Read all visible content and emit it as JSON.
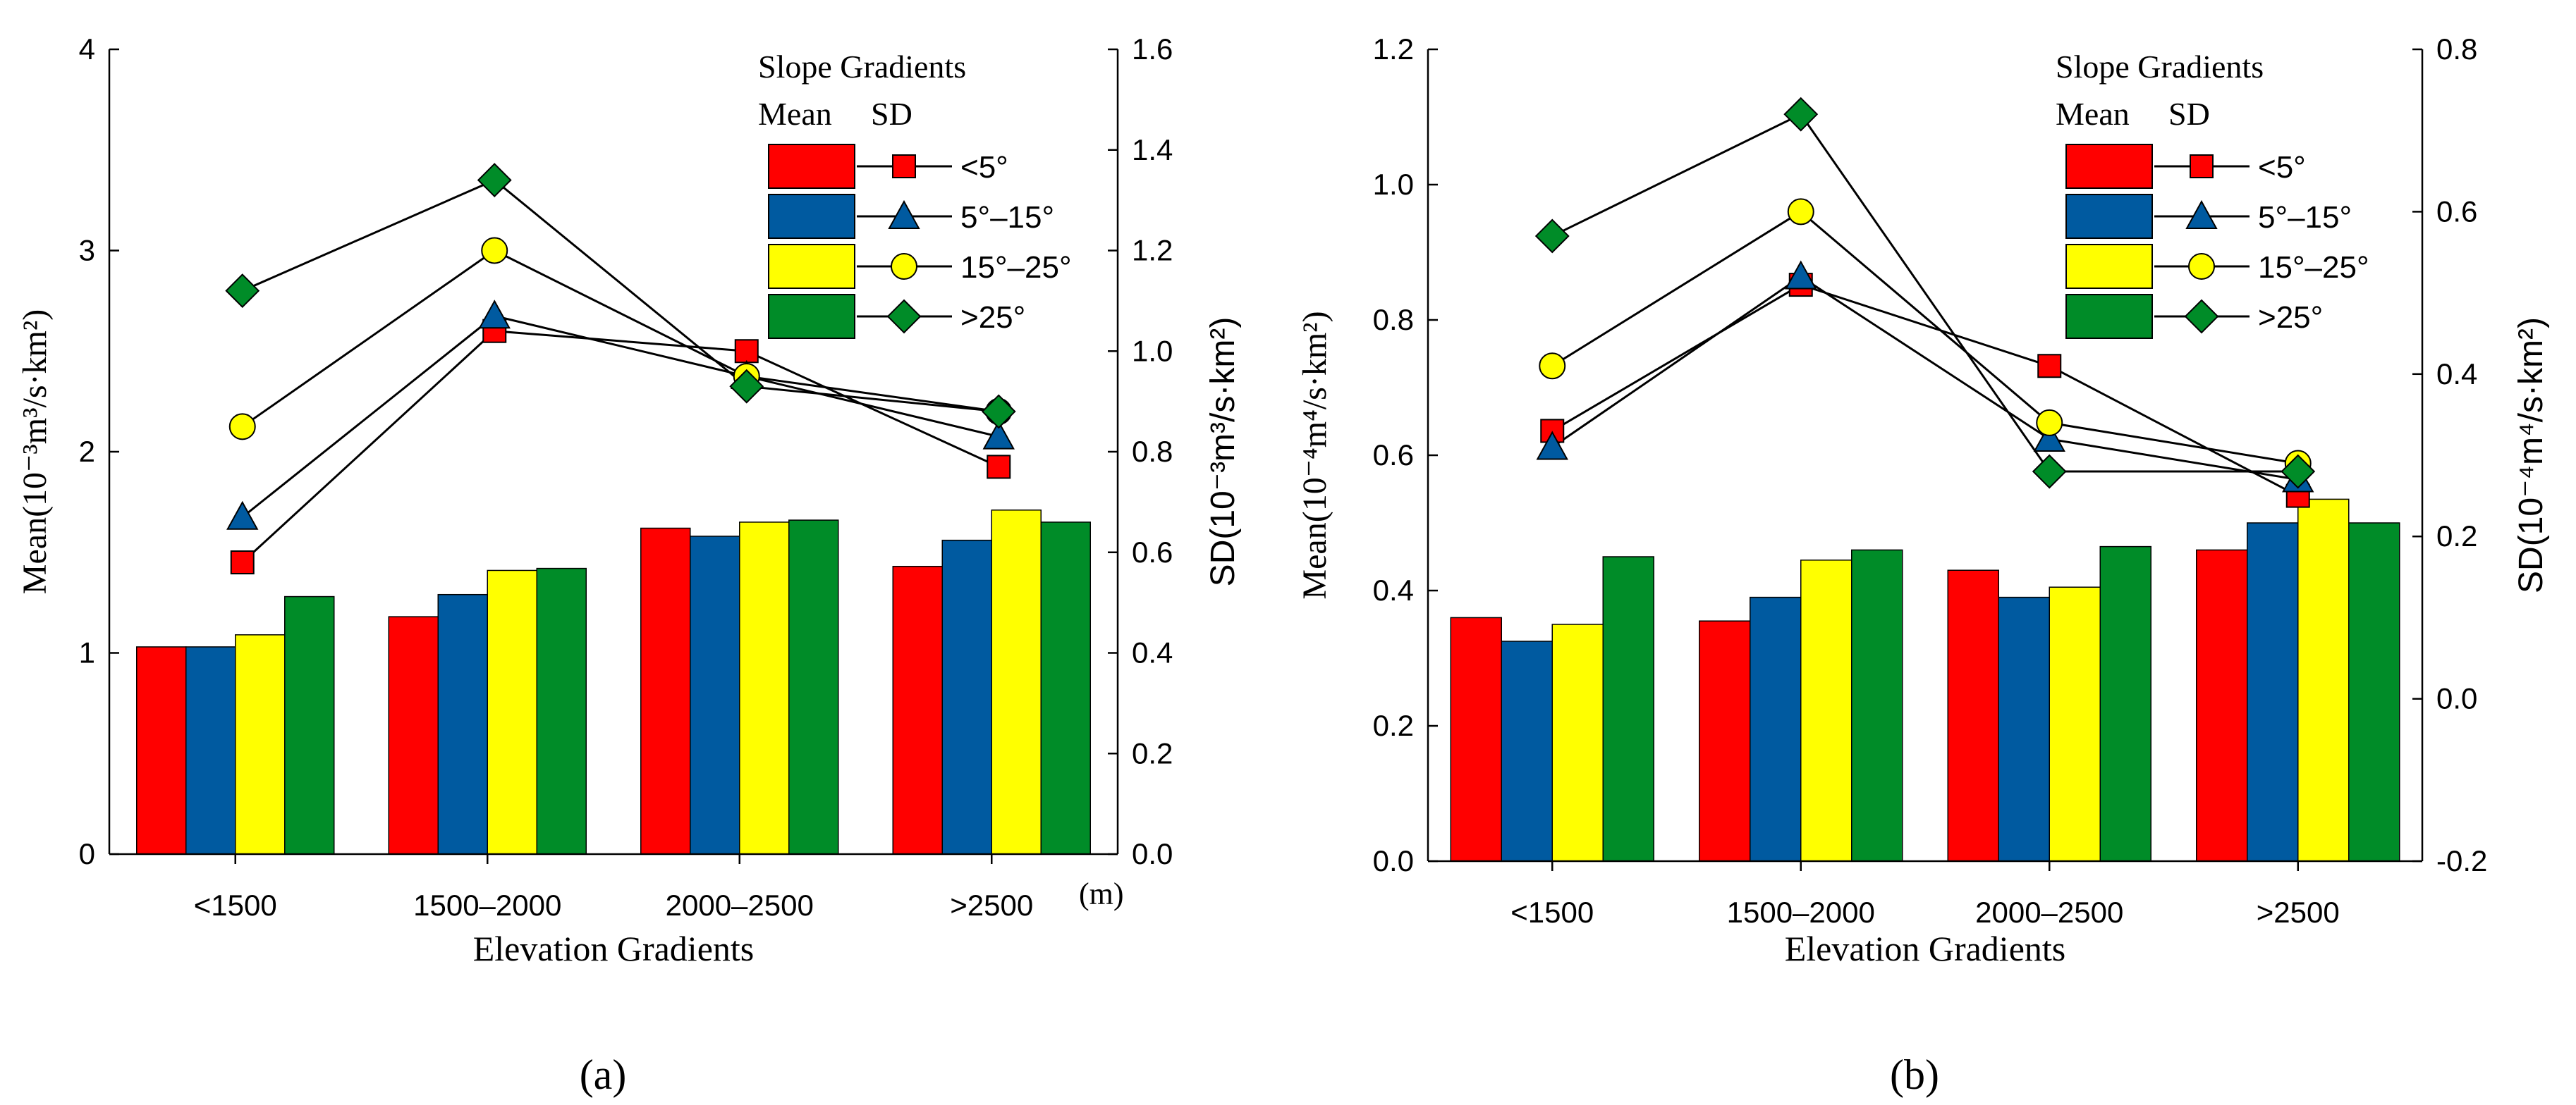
{
  "figure": {
    "panel_labels": [
      "(a)",
      "(b)"
    ]
  },
  "colors": {
    "lt5": "#ff0000",
    "5to15": "#005aa0",
    "15to25": "#ffff00",
    "gt25": "#008c28",
    "axis": "#000000"
  },
  "chart_data": [
    {
      "type": "bar",
      "panel": "(a)",
      "categories": [
        "<1500",
        "1500–2000",
        "2000–2500",
        ">2500"
      ],
      "xlabel": "Elevation Gradients",
      "x_unit": "(m)",
      "ylabel_left": "Mean(10⁻³m³/s·km²)",
      "ylabel_right": "SD(10⁻³m³/s·km²)",
      "ylim_left": [
        0,
        4
      ],
      "yticks_left": [
        "0",
        "1",
        "2",
        "3",
        "4"
      ],
      "ylim_right": [
        0,
        1.6
      ],
      "yticks_right": [
        "0.0",
        "0.2",
        "0.4",
        "0.6",
        "0.8",
        "1.0",
        "1.2",
        "1.4",
        "1.6"
      ],
      "legend": {
        "title": "Slope Gradients",
        "col_mean": "Mean",
        "col_sd": "SD",
        "placement": "top-right"
      },
      "series": [
        {
          "name": "<5°",
          "color_key": "lt5",
          "marker": "square",
          "mean": [
            1.03,
            1.18,
            1.62,
            1.43
          ],
          "sd": [
            0.58,
            1.04,
            1.0,
            0.77
          ]
        },
        {
          "name": "5°–15°",
          "color_key": "5to15",
          "marker": "triangle",
          "mean": [
            1.03,
            1.29,
            1.58,
            1.56
          ],
          "sd": [
            0.67,
            1.07,
            0.95,
            0.83
          ]
        },
        {
          "name": "15°–25°",
          "color_key": "15to25",
          "marker": "circle",
          "mean": [
            1.09,
            1.41,
            1.65,
            1.71
          ],
          "sd": [
            0.85,
            1.2,
            0.95,
            0.88
          ]
        },
        {
          "name": ">25°",
          "color_key": "gt25",
          "marker": "diamond",
          "mean": [
            1.28,
            1.42,
            1.66,
            1.65
          ],
          "sd": [
            1.12,
            1.34,
            0.93,
            0.88
          ]
        }
      ]
    },
    {
      "type": "bar",
      "panel": "(b)",
      "categories": [
        "<1500",
        "1500–2000",
        "2000–2500",
        ">2500"
      ],
      "xlabel": "Elevation Gradients",
      "ylabel_left": "Mean(10⁻⁴m⁴/s·km²)",
      "ylabel_right": "SD(10⁻⁴m⁴/s·km²)",
      "ylim_left": [
        0,
        1.2
      ],
      "yticks_left": [
        "0.0",
        "0.2",
        "0.4",
        "0.6",
        "0.8",
        "1.0",
        "1.2"
      ],
      "ylim_right": [
        -0.2,
        0.8
      ],
      "yticks_right": [
        "-0.2",
        "0.0",
        "0.2",
        "0.4",
        "0.6",
        "0.8"
      ],
      "legend": {
        "title": "Slope Gradients",
        "col_mean": "Mean",
        "col_sd": "SD",
        "placement": "top-right"
      },
      "series": [
        {
          "name": "<5°",
          "color_key": "lt5",
          "marker": "square",
          "mean": [
            0.36,
            0.355,
            0.43,
            0.46
          ],
          "sd": [
            0.33,
            0.51,
            0.41,
            0.25
          ]
        },
        {
          "name": "5°–15°",
          "color_key": "5to15",
          "marker": "triangle",
          "mean": [
            0.325,
            0.39,
            0.39,
            0.5
          ],
          "sd": [
            0.31,
            0.52,
            0.32,
            0.27
          ]
        },
        {
          "name": "15°–25°",
          "color_key": "15to25",
          "marker": "circle",
          "mean": [
            0.35,
            0.445,
            0.405,
            0.535
          ],
          "sd": [
            0.41,
            0.6,
            0.34,
            0.29
          ]
        },
        {
          "name": ">25°",
          "color_key": "gt25",
          "marker": "diamond",
          "mean": [
            0.45,
            0.46,
            0.465,
            0.5
          ],
          "sd": [
            0.57,
            0.72,
            0.28,
            0.28
          ]
        }
      ]
    }
  ]
}
